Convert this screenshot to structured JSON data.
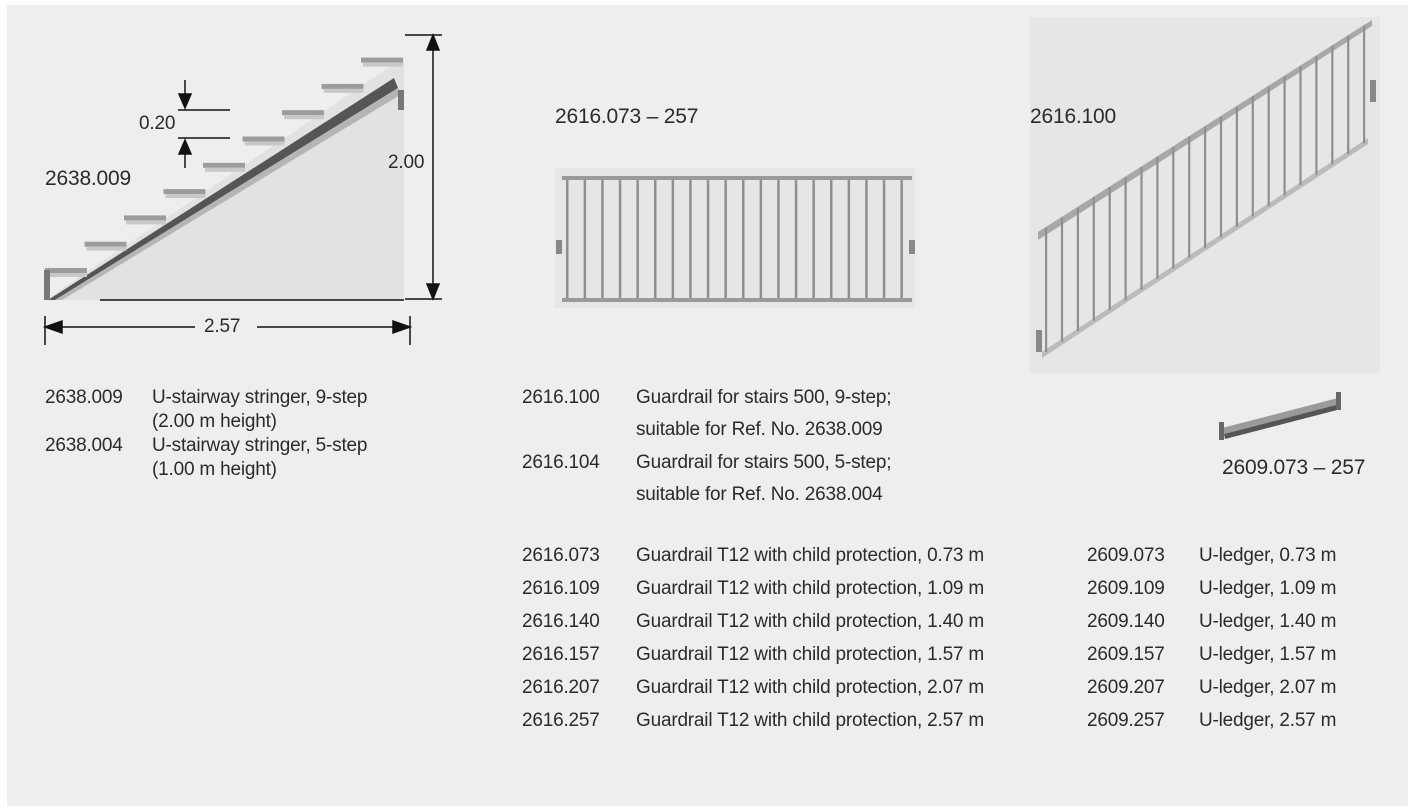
{
  "stringer": {
    "label": "2638.009",
    "dim_step": "0.20",
    "dim_height": "2.00",
    "dim_length": "2.57"
  },
  "guardrail_straight": {
    "label": "2616.073 – 257"
  },
  "guardrail_stairs": {
    "label": "2616.100"
  },
  "ledger": {
    "label": "2609.073 – 257"
  },
  "stringer_list": [
    {
      "ref": "2638.009",
      "line1": "U-stairway stringer, 9-step",
      "line2": "(2.00 m height)"
    },
    {
      "ref": "2638.004",
      "line1": "U-stairway stringer, 5-step",
      "line2": "(1.00 m height)"
    }
  ],
  "stair_guardrail_list": [
    {
      "ref": "2616.100",
      "line1": "Guardrail for stairs 500, 9-step;",
      "line2": "suitable for Ref. No. 2638.009"
    },
    {
      "ref": "2616.104",
      "line1": "Guardrail for stairs 500, 5-step;",
      "line2": "suitable for Ref. No. 2638.004"
    }
  ],
  "t12_list": [
    {
      "ref": "2616.073",
      "desc": "Guardrail T12 with child protection, 0.73 m"
    },
    {
      "ref": "2616.109",
      "desc": "Guardrail T12 with child protection, 1.09 m"
    },
    {
      "ref": "2616.140",
      "desc": "Guardrail T12 with child protection, 1.40 m"
    },
    {
      "ref": "2616.157",
      "desc": "Guardrail T12 with child protection, 1.57 m"
    },
    {
      "ref": "2616.207",
      "desc": "Guardrail T12 with child protection, 2.07 m"
    },
    {
      "ref": "2616.257",
      "desc": "Guardrail T12 with child protection, 2.57 m"
    }
  ],
  "ledger_list": [
    {
      "ref": "2609.073",
      "desc": "U-ledger, 0.73 m"
    },
    {
      "ref": "2609.109",
      "desc": "U-ledger, 1.09 m"
    },
    {
      "ref": "2609.140",
      "desc": "U-ledger, 1.40 m"
    },
    {
      "ref": "2609.157",
      "desc": "U-ledger, 1.57 m"
    },
    {
      "ref": "2609.207",
      "desc": "U-ledger, 2.07 m"
    },
    {
      "ref": "2609.257",
      "desc": "U-ledger, 2.57 m"
    }
  ],
  "colors": {
    "panel": "#eeeeee",
    "text": "#2b2b2b",
    "metal": "#b8b8b8"
  }
}
